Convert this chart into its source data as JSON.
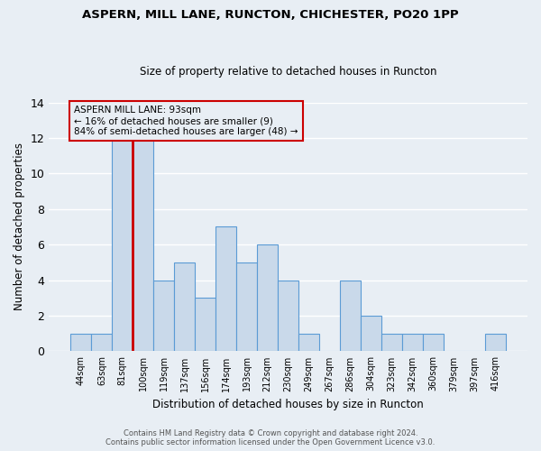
{
  "title1": "ASPERN, MILL LANE, RUNCTON, CHICHESTER, PO20 1PP",
  "title2": "Size of property relative to detached houses in Runcton",
  "xlabel": "Distribution of detached houses by size in Runcton",
  "ylabel": "Number of detached properties",
  "bar_labels": [
    "44sqm",
    "63sqm",
    "81sqm",
    "100sqm",
    "119sqm",
    "137sqm",
    "156sqm",
    "174sqm",
    "193sqm",
    "212sqm",
    "230sqm",
    "249sqm",
    "267sqm",
    "286sqm",
    "304sqm",
    "323sqm",
    "342sqm",
    "360sqm",
    "379sqm",
    "397sqm",
    "416sqm"
  ],
  "bar_values": [
    1,
    1,
    12,
    12,
    4,
    5,
    3,
    7,
    5,
    6,
    4,
    1,
    0,
    4,
    2,
    1,
    1,
    1,
    0,
    0,
    1
  ],
  "bar_color": "#c9d9ea",
  "bar_edgecolor": "#5b9bd5",
  "highlight_index": 2,
  "annotation_text": "ASPERN MILL LANE: 93sqm\n← 16% of detached houses are smaller (9)\n84% of semi-detached houses are larger (48) →",
  "annotation_box_edgecolor": "#cc0000",
  "red_line_index": 2,
  "ylim": [
    0,
    14
  ],
  "yticks": [
    0,
    2,
    4,
    6,
    8,
    10,
    12,
    14
  ],
  "footer1": "Contains HM Land Registry data © Crown copyright and database right 2024.",
  "footer2": "Contains public sector information licensed under the Open Government Licence v3.0.",
  "bg_color": "#e8eef4",
  "grid_color": "#ffffff"
}
